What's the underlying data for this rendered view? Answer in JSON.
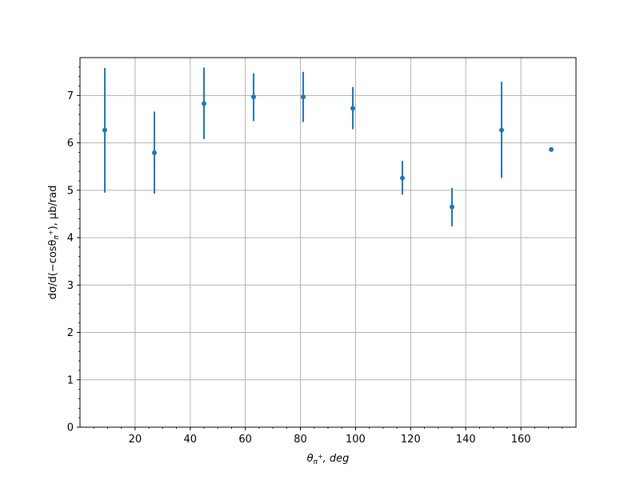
{
  "chart_data": {
    "type": "scatter",
    "title": "",
    "xlabel": {
      "symbol": "θ",
      "sub": "π",
      "subsup": "+",
      "rest": ", deg"
    },
    "ylabel": {
      "text": "dσ/d(−cosθ",
      "sub": "π",
      "subsup": "+",
      "rest": "), μb/rad"
    },
    "xlim": [
      0,
      180
    ],
    "ylim": [
      0,
      7.8
    ],
    "grid": true,
    "x_ticks": [
      20,
      40,
      60,
      80,
      100,
      120,
      140,
      160
    ],
    "y_ticks": [
      0,
      1,
      2,
      3,
      4,
      5,
      6,
      7
    ],
    "x_tick_labels": [
      "20",
      "40",
      "60",
      "80",
      "100",
      "120",
      "140",
      "160"
    ],
    "y_tick_labels": [
      "0",
      "1",
      "2",
      "3",
      "4",
      "5",
      "6",
      "7"
    ],
    "series": [
      {
        "color": "#1f77b4",
        "points": [
          {
            "x": 9,
            "y": 6.27,
            "err_low": 4.95,
            "err_high": 7.58
          },
          {
            "x": 27,
            "y": 5.79,
            "err_low": 4.93,
            "err_high": 6.66
          },
          {
            "x": 45,
            "y": 6.83,
            "err_low": 6.08,
            "err_high": 7.59
          },
          {
            "x": 63,
            "y": 6.97,
            "err_low": 6.46,
            "err_high": 7.47
          },
          {
            "x": 81,
            "y": 6.97,
            "err_low": 6.44,
            "err_high": 7.5
          },
          {
            "x": 99,
            "y": 6.73,
            "err_low": 6.29,
            "err_high": 7.18
          },
          {
            "x": 117,
            "y": 5.26,
            "err_low": 4.91,
            "err_high": 5.62
          },
          {
            "x": 135,
            "y": 4.65,
            "err_low": 4.24,
            "err_high": 5.05
          },
          {
            "x": 153,
            "y": 6.27,
            "err_low": 5.26,
            "err_high": 7.29
          },
          {
            "x": 171,
            "y": 5.86,
            "err_low": 5.86,
            "err_high": 5.86
          }
        ]
      }
    ]
  }
}
